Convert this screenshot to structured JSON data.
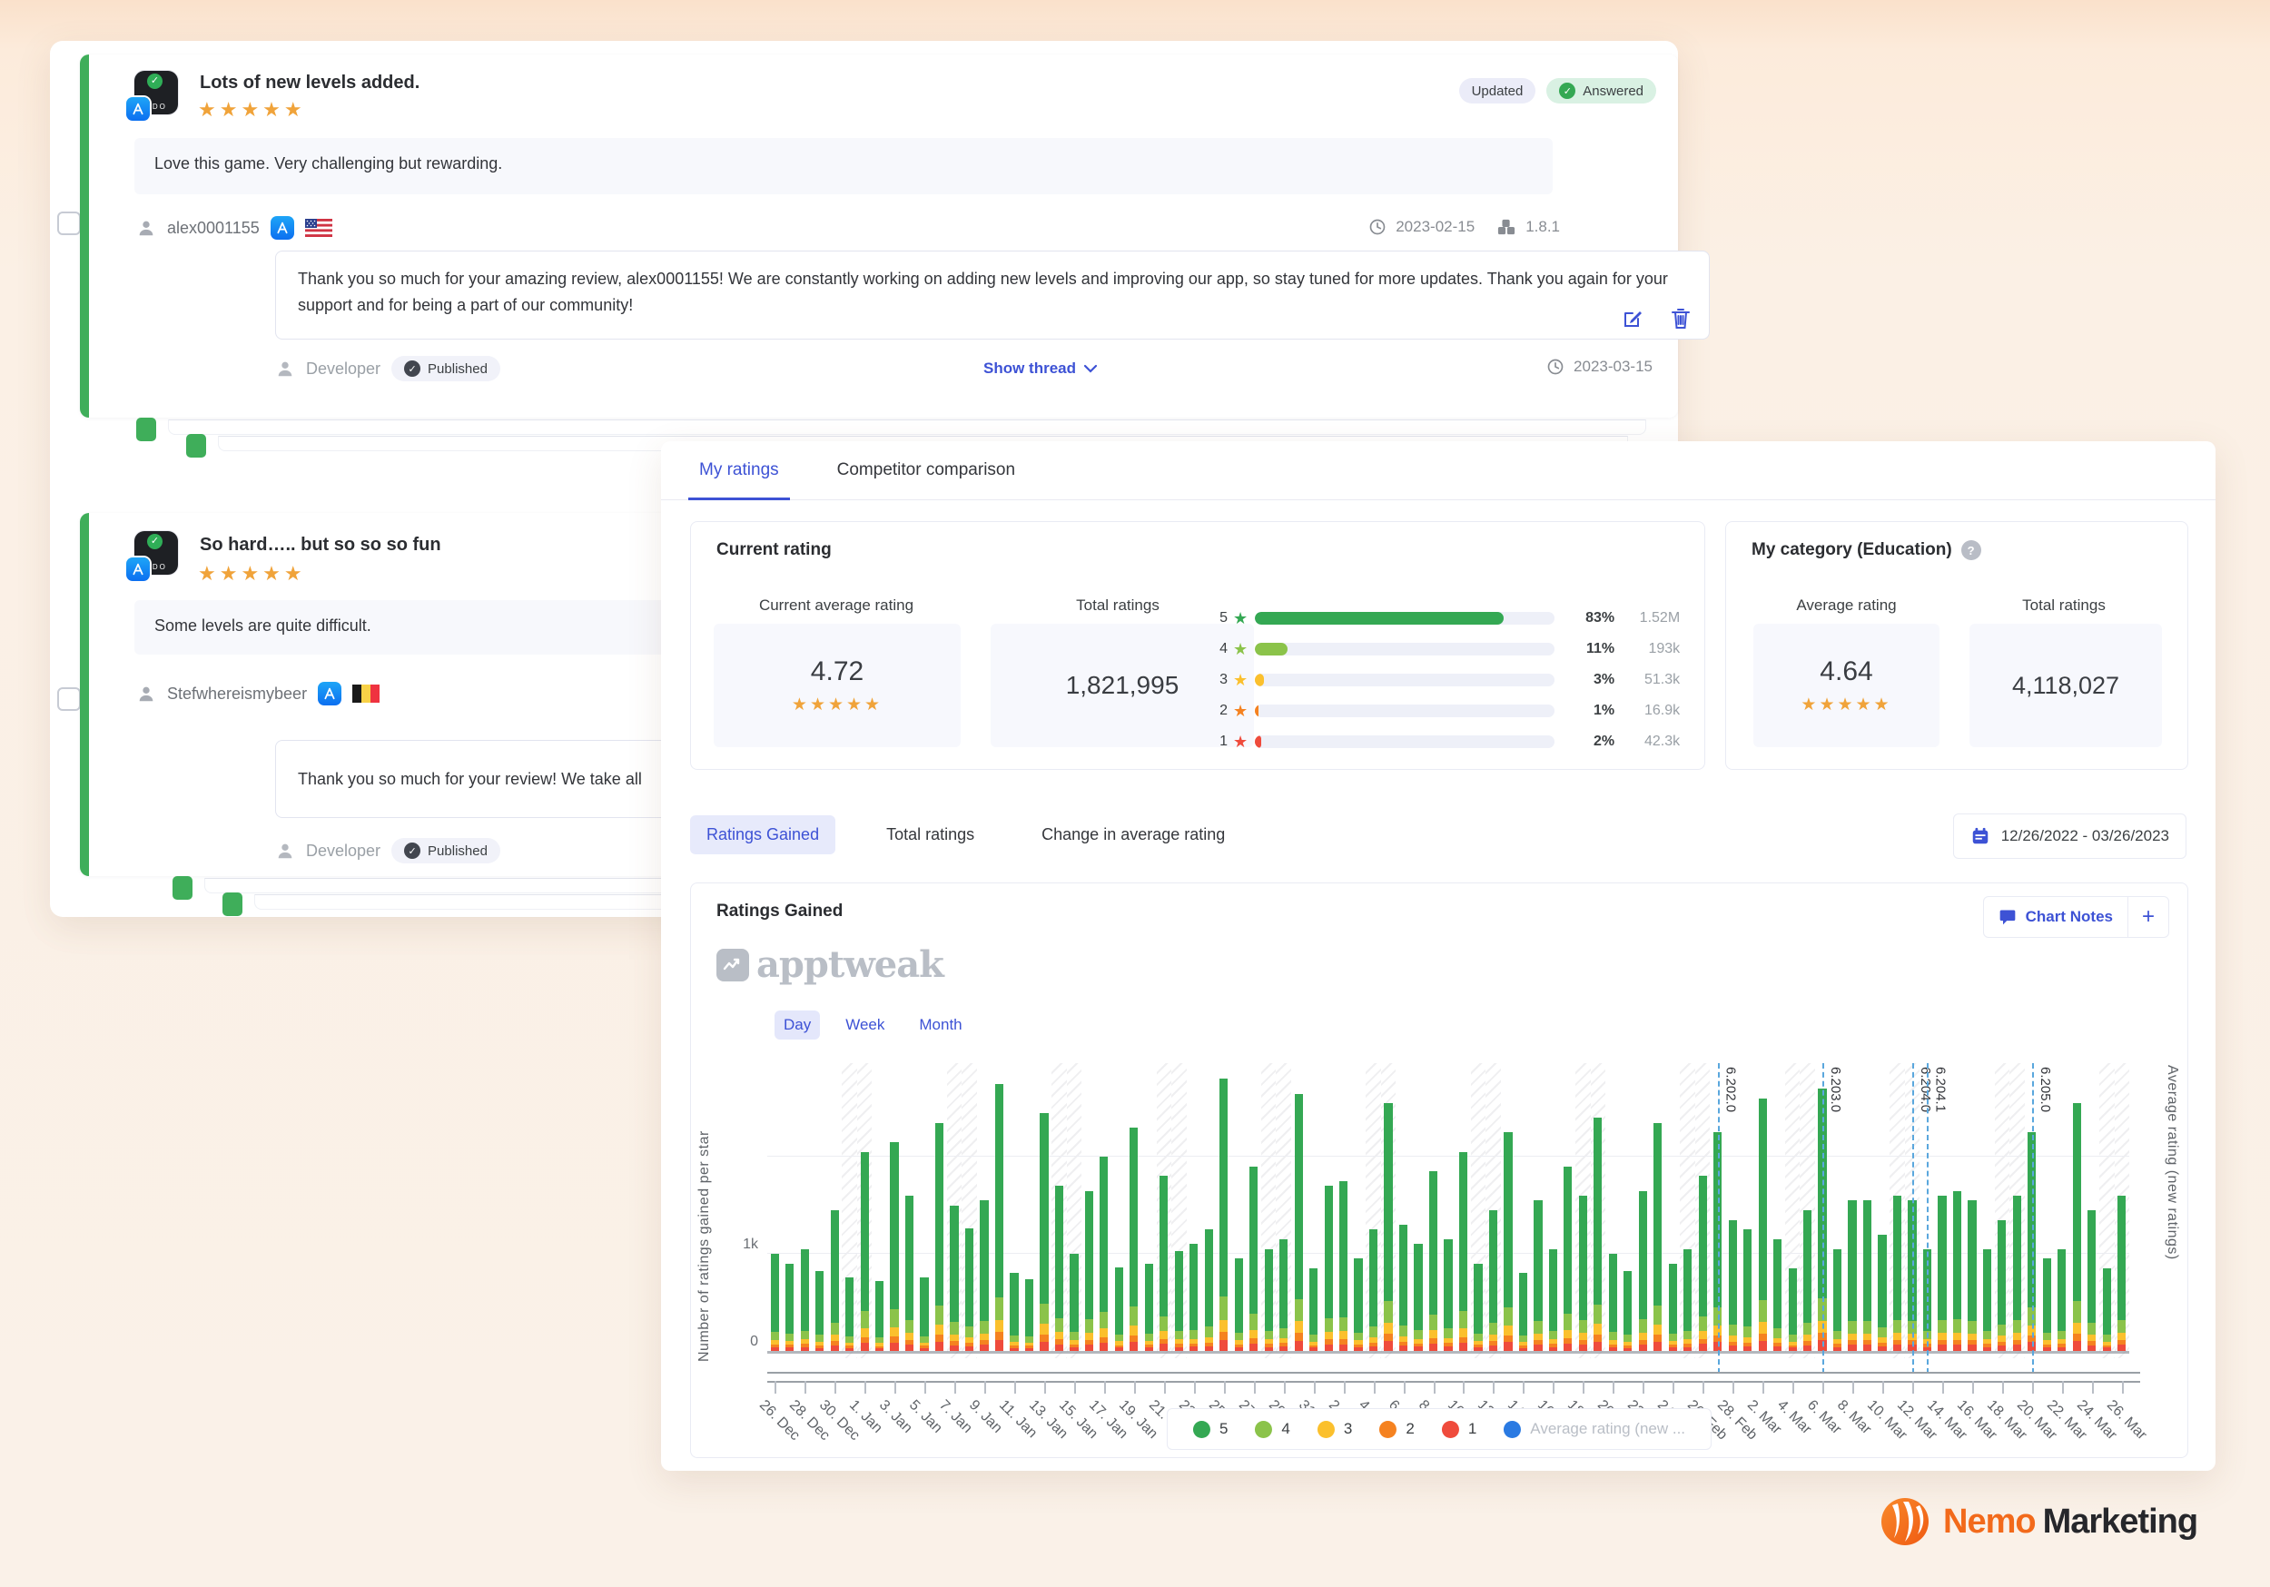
{
  "reviews": [
    {
      "title": "Lots of new levels added.",
      "stars": 5,
      "app_icon_letters": "RDO",
      "badges": {
        "updated": "Updated",
        "answered": "Answered"
      },
      "body": "Love this game. Very challenging but rewarding.",
      "username": "alex0001155",
      "store": "app-store",
      "country": "US",
      "date": "2023-02-15",
      "version": "1.8.1",
      "reply": {
        "text": "Thank you so much for your amazing review, alex0001155! We are constantly working on adding new levels and improving our app, so stay tuned for more updates. Thank you again for your support and for being a part of our community!",
        "author": "Developer",
        "status": "Published",
        "show_thread": "Show thread",
        "date": "2023-03-15"
      }
    },
    {
      "title": "So hard….. but so so so fun",
      "stars": 5,
      "app_icon_letters": "RDO",
      "body": "Some levels are quite difficult.",
      "username": "Stefwhereismybeer",
      "store": "app-store",
      "country": "BE",
      "reply": {
        "text": "Thank you so much for your review! We take all",
        "author": "Developer",
        "status": "Published"
      }
    }
  ],
  "ratings_panel": {
    "tabs": [
      {
        "label": "My ratings",
        "active": true
      },
      {
        "label": "Competitor comparison",
        "active": false
      }
    ],
    "current": {
      "heading": "Current rating",
      "avg_label": "Current average rating",
      "avg_value": "4.72",
      "avg_stars": 5,
      "total_label": "Total ratings",
      "total_value": "1,821,995",
      "breakdown": [
        {
          "star": "5",
          "pct": "83%",
          "count": "1.52M",
          "fill": 83,
          "color": "#34a853"
        },
        {
          "star": "4",
          "pct": "11%",
          "count": "193k",
          "fill": 11,
          "color": "#8bc34a"
        },
        {
          "star": "3",
          "pct": "3%",
          "count": "51.3k",
          "fill": 3,
          "color": "#fbc02d"
        },
        {
          "star": "2",
          "pct": "1%",
          "count": "16.9k",
          "fill": 1,
          "color": "#f58220"
        },
        {
          "star": "1",
          "pct": "2%",
          "count": "42.3k",
          "fill": 2,
          "color": "#ef4b3c"
        }
      ]
    },
    "category": {
      "heading": "My category (Education)",
      "avg_label": "Average rating",
      "avg_value": "4.64",
      "avg_stars": 5,
      "total_label": "Total ratings",
      "total_value": "4,118,027"
    },
    "subtabs": [
      {
        "label": "Ratings Gained",
        "active": true
      },
      {
        "label": "Total ratings",
        "active": false
      },
      {
        "label": "Change in average rating",
        "active": false
      }
    ],
    "date_range": "12/26/2022 - 03/26/2023",
    "chart_notes_label": "Chart Notes",
    "add_note_label": "+",
    "watermark": "apptweak",
    "granularity": [
      {
        "label": "Day",
        "active": true
      },
      {
        "label": "Week",
        "active": false
      },
      {
        "label": "Month",
        "active": false
      }
    ]
  },
  "chart_data": {
    "type": "stacked-bar",
    "title": "Ratings Gained",
    "ylabel_left": "Number of ratings gained per star",
    "ylabel_right": "Average rating (new ratings)",
    "ytick_labels": [
      "1k",
      "0"
    ],
    "ylim": [
      0,
      2950
    ],
    "gridlines_at": [
      1000,
      2000
    ],
    "x_start": "2022-12-26",
    "x_end": "2023-03-26",
    "x_start_weekday": "Mon",
    "weekend_shading": true,
    "x_tick_labels": [
      "26. Dec",
      "28. Dec",
      "30. Dec",
      "1. Jan",
      "3. Jan",
      "5. Jan",
      "7. Jan",
      "9. Jan",
      "11. Jan",
      "13. Jan",
      "15. Jan",
      "17. Jan",
      "19. Jan",
      "21. Jan",
      "23. Jan",
      "25. Jan",
      "27. Jan",
      "29. Jan",
      "31. Jan",
      "2. Feb",
      "4. Feb",
      "6. Feb",
      "8. Feb",
      "10. Feb",
      "12. Feb",
      "14. Feb",
      "16. Feb",
      "18. Feb",
      "20. Feb",
      "22. Feb",
      "24. Feb",
      "26. Feb",
      "28. Feb",
      "2. Mar",
      "4. Mar",
      "6. Mar",
      "8. Mar",
      "10. Mar",
      "12. Mar",
      "14. Mar",
      "16. Mar",
      "18. Mar",
      "20. Mar",
      "22. Mar",
      "24. Mar",
      "26. Mar"
    ],
    "totals": [
      1000,
      900,
      1050,
      820,
      1450,
      760,
      2050,
      720,
      2150,
      1600,
      760,
      2350,
      1500,
      1260,
      1550,
      2750,
      800,
      740,
      2450,
      1700,
      1000,
      1650,
      2000,
      860,
      2300,
      900,
      1800,
      1030,
      1100,
      1250,
      2800,
      950,
      1900,
      1050,
      1150,
      2650,
      850,
      1700,
      1750,
      950,
      1250,
      2550,
      1300,
      1100,
      1850,
      1150,
      2050,
      900,
      1450,
      2250,
      800,
      1550,
      1050,
      1900,
      1600,
      2400,
      1000,
      820,
      1650,
      2350,
      900,
      1050,
      1800,
      2250,
      1350,
      1250,
      2600,
      1150,
      850,
      1450,
      2700,
      1050,
      1550,
      1550,
      1200,
      1600,
      1550,
      1050,
      1600,
      1650,
      1550,
      1050,
      1350,
      1600,
      2250,
      950,
      1050,
      2550,
      1450,
      850,
      1600
    ],
    "stack_fractions": {
      "1": 0.04,
      "2": 0.03,
      "3": 0.045,
      "4": 0.085,
      "5": 0.8
    },
    "colors": {
      "5": "#34a853",
      "4": "#8bc34a",
      "3": "#fbc02d",
      "2": "#f58220",
      "1": "#ef4b3c",
      "avg": "#2a7ae2"
    },
    "legend": [
      {
        "label": "5",
        "color": "#34a853",
        "muted": false
      },
      {
        "label": "4",
        "color": "#8bc34a",
        "muted": false
      },
      {
        "label": "3",
        "color": "#fbc02d",
        "muted": false
      },
      {
        "label": "2",
        "color": "#f58220",
        "muted": false
      },
      {
        "label": "1",
        "color": "#ef4b3c",
        "muted": false
      },
      {
        "label": "Average rating (new ...",
        "color": "#2a7ae2",
        "muted": true
      }
    ],
    "version_markers": [
      {
        "label": "6.202.0",
        "index": 63
      },
      {
        "label": "6.203.0",
        "index": 70
      },
      {
        "label": "6.204.0",
        "index": 76
      },
      {
        "label": "6.204.1",
        "index": 77
      },
      {
        "label": "6.205.0",
        "index": 84
      }
    ]
  },
  "footer": {
    "brand_first": "Nemo",
    "brand_second": "Marketing"
  }
}
